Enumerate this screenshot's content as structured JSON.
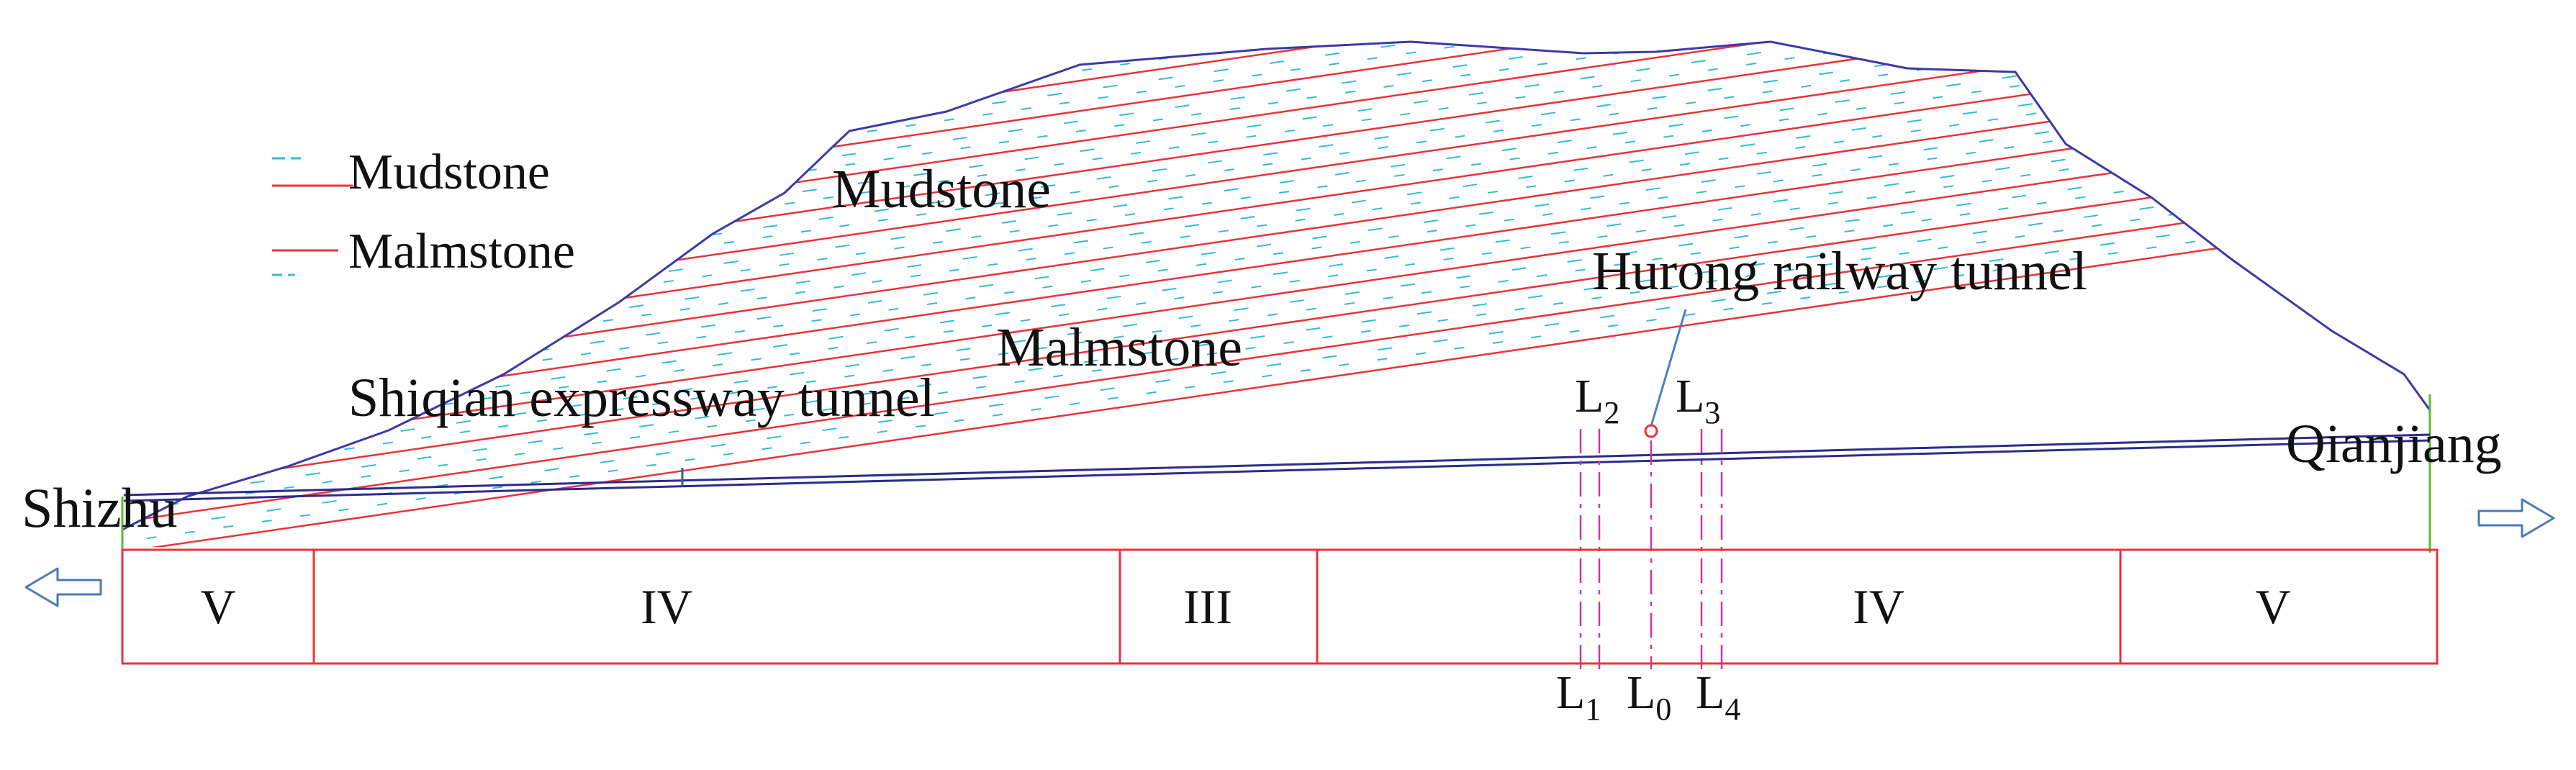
{
  "legend": {
    "items": [
      {
        "label": "Mudstone",
        "symbol": "dashed-cyan-line"
      },
      {
        "label": "Malmstone",
        "symbol": "solid-red-line"
      }
    ]
  },
  "labels": {
    "mudstone": "Mudstone",
    "malmstone": "Malmstone",
    "hurong_tunnel": "Hurong railway tunnel",
    "shiqian_tunnel": "Shiqian expressway tunnel",
    "shizhu": "Shizhu",
    "qianjiang": "Qianjiang"
  },
  "section_lines": {
    "top": [
      {
        "base": "L",
        "sub": "2"
      },
      {
        "base": "L",
        "sub": "3"
      }
    ],
    "bottom": [
      {
        "base": "L",
        "sub": "1"
      },
      {
        "base": "L",
        "sub": "0"
      },
      {
        "base": "L",
        "sub": "4"
      }
    ]
  },
  "grades": [
    "V",
    "IV",
    "III",
    "IV",
    "V"
  ],
  "arrows": {
    "left": "left-arrow-icon",
    "right": "right-arrow-icon"
  },
  "colors": {
    "mudstone": "#33bbd6",
    "malmstone": "#e8333a",
    "surface": "#3a3aa8",
    "tunnel": "#2c2c8c",
    "section_line": "#cc33aa",
    "grade_table": "#e8333a",
    "arrow": "#4a7ab8",
    "boundary": "#55bb33"
  }
}
